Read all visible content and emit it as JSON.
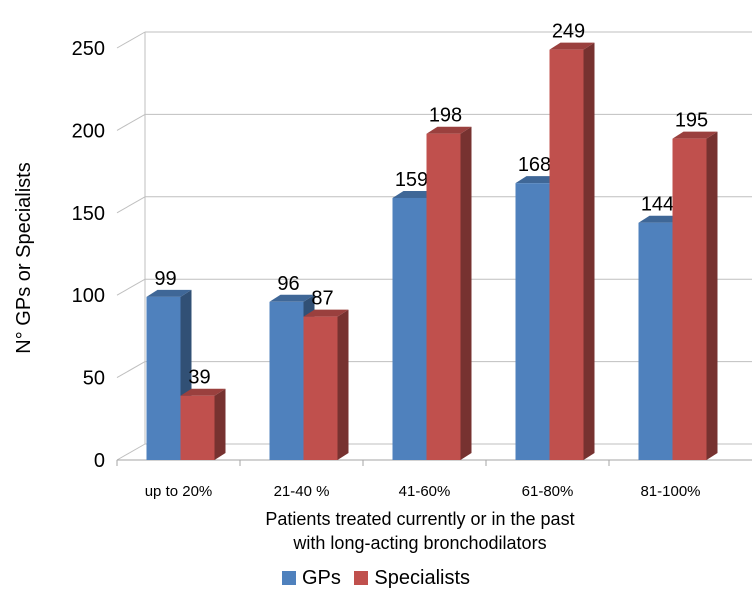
{
  "chart_data": {
    "type": "bar",
    "style": "3d-clustered-column",
    "categories": [
      "up to 20%",
      "21-40 %",
      "41-60%",
      "61-80%",
      "81-100%"
    ],
    "series": [
      {
        "name": "GPs",
        "values": [
          99,
          96,
          159,
          168,
          144
        ],
        "color": "#4F81BD"
      },
      {
        "name": "Specialists",
        "values": [
          39,
          87,
          198,
          249,
          195
        ],
        "color": "#C0504D"
      }
    ],
    "xlabel": "Patients treated currently or in the past\nwith long-acting bronchodilators",
    "ylabel": "N° GPs or Specialists",
    "ylim": [
      0,
      250
    ],
    "yticks": [
      0,
      50,
      100,
      150,
      200,
      250
    ],
    "grid": true,
    "data_labels": true,
    "legend": "bottom"
  }
}
